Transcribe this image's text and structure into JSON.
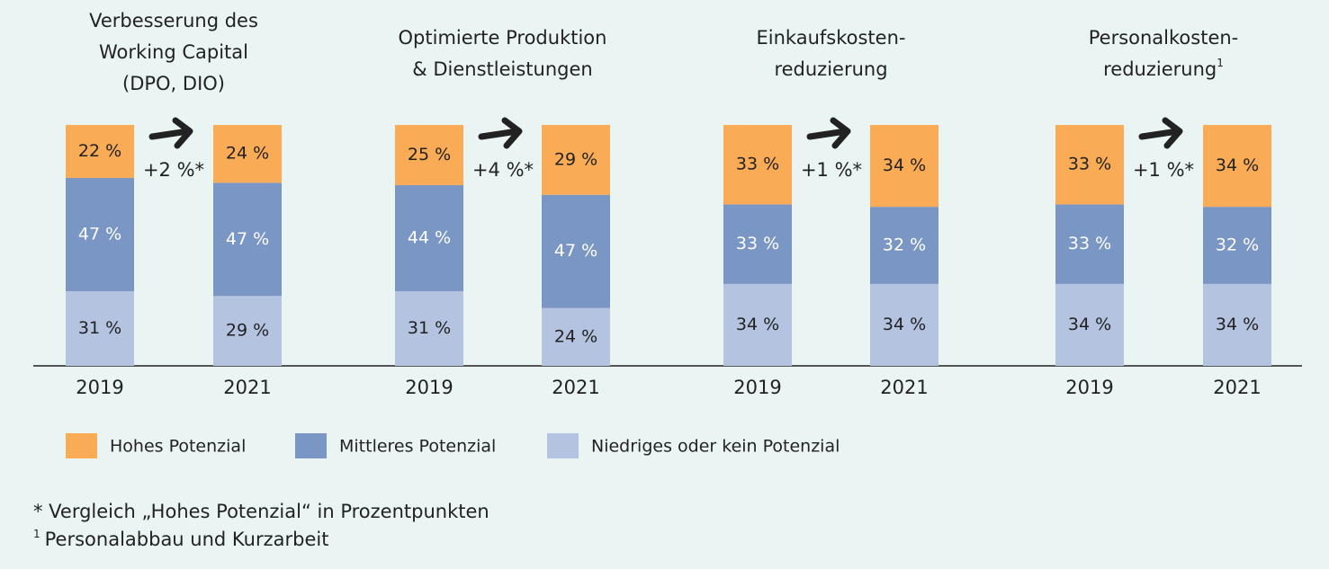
{
  "chart_data": {
    "type": "bar",
    "stacked": true,
    "categories": [
      "2019",
      "2021",
      "2019",
      "2021",
      "2019",
      "2021",
      "2019",
      "2021"
    ],
    "groups": [
      {
        "title": [
          "Verbesserung des",
          "Working Capital",
          "(DPO, DIO)"
        ],
        "annotation": "+2 %*"
      },
      {
        "title": [
          "Optimierte Produktion",
          "& Dienstleistungen"
        ],
        "annotation": "+4 %*"
      },
      {
        "title": [
          "Einkaufskosten-",
          "reduzierung"
        ],
        "annotation": "+1 %*"
      },
      {
        "title": [
          "Personalkosten-",
          "reduzierung"
        ],
        "title_note": "1",
        "annotation": "+1 %*"
      }
    ],
    "series": [
      {
        "name": "Niedriges oder kein Potenzial",
        "color": "#b3c3e0",
        "label_color": "#222",
        "values": [
          31,
          29,
          31,
          24,
          34,
          34,
          34,
          34
        ],
        "value_labels": [
          "31 %",
          "29 %",
          "31 %",
          "24 %",
          "34 %",
          "34 %",
          "34 %",
          "34 %"
        ]
      },
      {
        "name": "Mittleres Potenzial",
        "color": "#7a96c4",
        "label_color": "#ffffff",
        "values": [
          47,
          47,
          44,
          47,
          33,
          32,
          33,
          32
        ],
        "value_labels": [
          "47 %",
          "47 %",
          "44 %",
          "47 %",
          "33 %",
          "32 %",
          "33 %",
          "32 %"
        ]
      },
      {
        "name": "Hohes Potenzial",
        "color": "#f9ab55",
        "label_color": "#222",
        "values": [
          22,
          24,
          25,
          29,
          33,
          34,
          33,
          34
        ],
        "value_labels": [
          "22 %",
          "24 %",
          "25 %",
          "29 %",
          "33 %",
          "34 %",
          "33 %",
          "34 %"
        ]
      }
    ],
    "notes": [
      {
        "text": "* Vergleich „Hohes Potenzial“ in Prozentpunkten"
      },
      {
        "marker": "1",
        "text": "Personalabbau und Kurzarbeit"
      }
    ]
  }
}
